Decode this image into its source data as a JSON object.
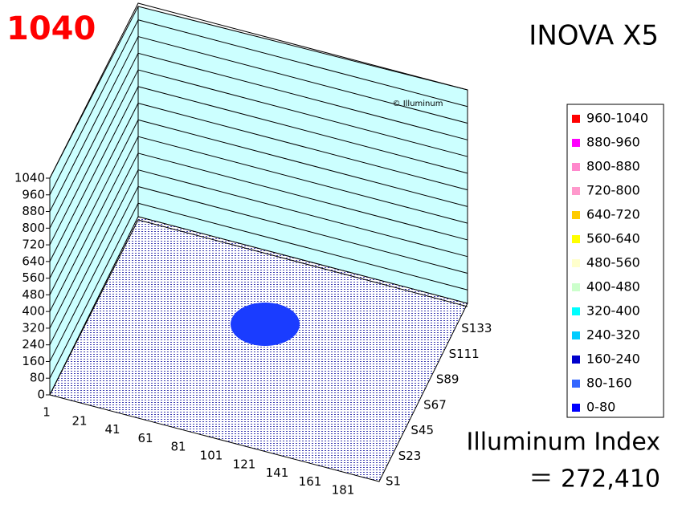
{
  "chart_data": {
    "type": "surface3d",
    "title": "INOVA X5",
    "annotations": [
      "1040",
      "© Illuminum",
      "Illuminum Index",
      "＝ 272,410"
    ],
    "categories": [
      "1",
      "21",
      "41",
      "61",
      "81",
      "101",
      "121",
      "141",
      "161",
      "181"
    ],
    "rows": [
      "S1",
      "S23",
      "S45",
      "S67",
      "S89",
      "S111",
      "S133"
    ],
    "zlim": [
      0,
      1040
    ],
    "zticks": [
      0,
      80,
      160,
      240,
      320,
      400,
      480,
      560,
      640,
      720,
      800,
      880,
      960,
      1040
    ],
    "legend": [
      {
        "name": "960-1040",
        "color": "#ff0000"
      },
      {
        "name": "880-960",
        "color": "#ff00ff"
      },
      {
        "name": "800-880",
        "color": "#ff88cc"
      },
      {
        "name": "720-800",
        "color": "#ff99cc"
      },
      {
        "name": "640-720",
        "color": "#ffcc00"
      },
      {
        "name": "560-640",
        "color": "#ffff00"
      },
      {
        "name": "480-560",
        "color": "#ffffcc"
      },
      {
        "name": "400-480",
        "color": "#ccffcc"
      },
      {
        "name": "320-400",
        "color": "#00ffff"
      },
      {
        "name": "240-320",
        "color": "#00ccff"
      },
      {
        "name": "160-240",
        "color": "#0000cc"
      },
      {
        "name": "80-160",
        "color": "#3366ff"
      },
      {
        "name": "0-80",
        "color": "#0000ff"
      }
    ]
  }
}
